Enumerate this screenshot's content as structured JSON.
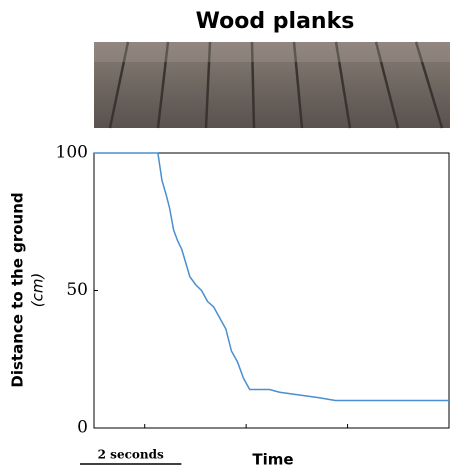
{
  "chart_data": {
    "type": "line",
    "title": "Wood planks",
    "xlabel": "Time",
    "ylabel": "Distance to the ground",
    "yunit": "(cm)",
    "x": [
      0,
      1.26,
      1.34,
      1.42,
      1.49,
      1.57,
      1.65,
      1.73,
      1.81,
      1.89,
      2.01,
      2.12,
      2.24,
      2.36,
      2.48,
      2.6,
      2.71,
      2.83,
      2.95,
      3.07,
      3.46,
      3.66,
      4.05,
      4.44,
      4.76,
      7
    ],
    "series": [
      {
        "color": "#4a8fcf",
        "values": [
          100,
          100,
          90,
          85,
          80,
          72,
          68,
          65,
          60,
          55,
          52,
          50,
          46,
          44,
          40,
          36,
          28,
          24,
          18,
          14,
          14,
          13,
          12,
          11,
          10,
          10
        ]
      }
    ],
    "xlim": [
      0,
      7
    ],
    "xticks": [
      1,
      3,
      5
    ],
    "ylim": [
      0,
      100
    ],
    "yticks": [
      0,
      50,
      100
    ],
    "scale_bar": {
      "value": 2,
      "label": "2 seconds"
    }
  }
}
